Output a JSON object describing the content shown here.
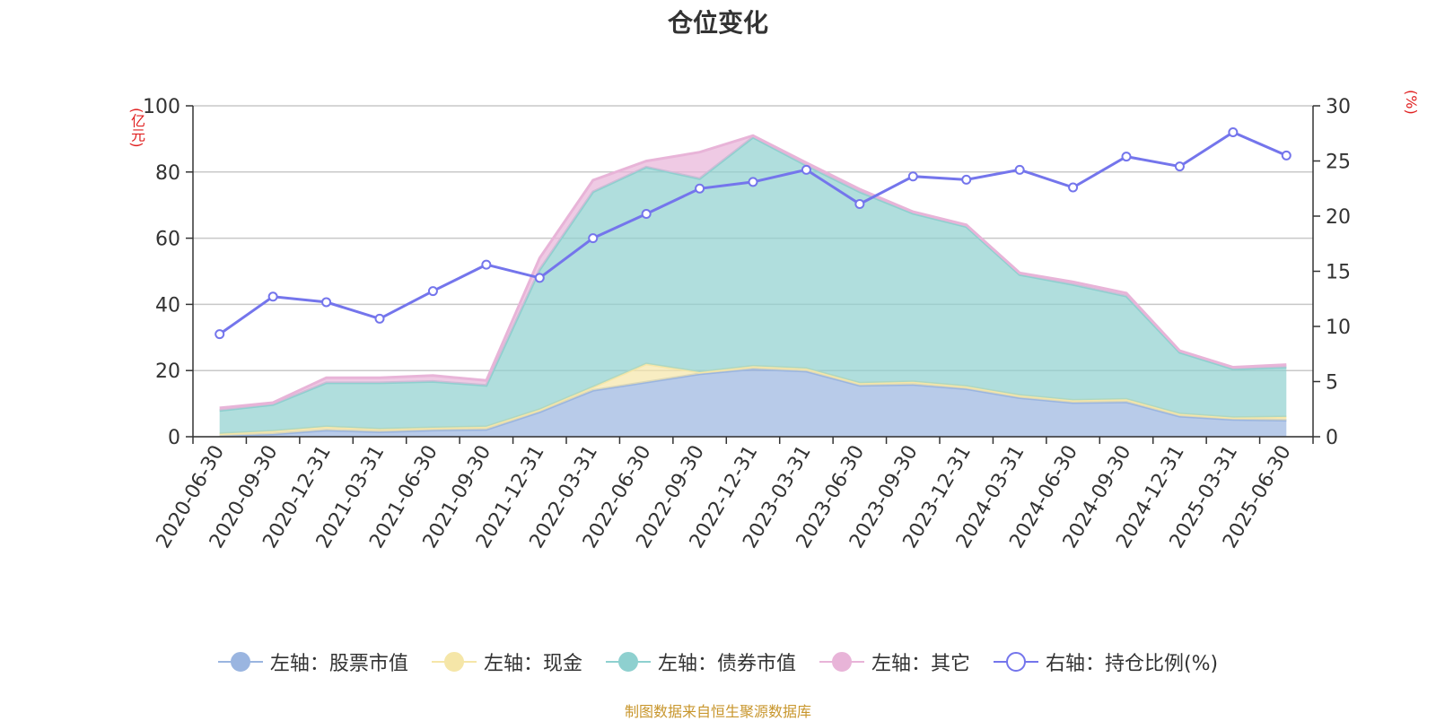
{
  "chart_data": {
    "type": "area",
    "title": "仓位变化",
    "y_left_unit": "(亿元)",
    "y_right_unit": "(%)",
    "categories": [
      "2020-06-30",
      "2020-09-30",
      "2020-12-31",
      "2021-03-31",
      "2021-06-30",
      "2021-09-30",
      "2021-12-31",
      "2022-03-31",
      "2022-06-30",
      "2022-09-30",
      "2022-12-31",
      "2023-03-31",
      "2023-06-30",
      "2023-09-30",
      "2023-12-31",
      "2024-03-31",
      "2024-06-30",
      "2024-09-30",
      "2024-12-31",
      "2025-03-31",
      "2025-06-30"
    ],
    "ylim_left": [
      0,
      100
    ],
    "yticks_left": [
      "0",
      "20",
      "40",
      "60",
      "80",
      "100"
    ],
    "ylim_right": [
      0,
      30
    ],
    "yticks_right": [
      "0",
      "5",
      "10",
      "15",
      "20",
      "25",
      "30"
    ],
    "grid": true,
    "legend_position": "bottom",
    "series": [
      {
        "name": "左轴：股票市值",
        "axis": "left",
        "type": "stacked-area",
        "color": "#9ab5e0",
        "values": [
          0.3,
          0.8,
          2.0,
          1.5,
          2.0,
          2.2,
          7.5,
          14.0,
          16.5,
          19.0,
          20.5,
          19.8,
          15.5,
          15.8,
          14.5,
          11.8,
          10.3,
          10.5,
          6.2,
          5.2,
          5.0
        ]
      },
      {
        "name": "左轴：现金",
        "axis": "left",
        "type": "stacked-area",
        "color": "#f5e6a8",
        "values": [
          0.6,
          0.9,
          1.0,
          0.8,
          0.7,
          0.8,
          0.7,
          1.0,
          5.5,
          0.5,
          0.8,
          0.8,
          0.7,
          0.8,
          0.7,
          0.7,
          0.7,
          0.8,
          0.7,
          0.6,
          1.0
        ]
      },
      {
        "name": "左轴：债券市值",
        "axis": "left",
        "type": "stacked-area",
        "color": "#8ed0cf",
        "values": [
          7.0,
          8.0,
          13.3,
          14.0,
          14.0,
          12.5,
          42.3,
          59.0,
          59.5,
          58.5,
          69.2,
          61.4,
          57.8,
          50.9,
          48.3,
          36.5,
          35.0,
          31.2,
          18.6,
          14.7,
          15.0
        ]
      },
      {
        "name": "左轴：其它",
        "axis": "left",
        "type": "stacked-area",
        "color": "#e8b4d8",
        "values": [
          0.8,
          0.6,
          1.5,
          1.5,
          1.8,
          1.5,
          3.5,
          3.5,
          1.8,
          8.0,
          0.5,
          0.8,
          0.8,
          0.5,
          0.5,
          0.5,
          0.8,
          0.9,
          0.5,
          0.5,
          0.8
        ]
      },
      {
        "name": "右轴：持仓比例(%)",
        "axis": "right",
        "type": "line",
        "color": "#7475ec",
        "values": [
          9.3,
          12.7,
          12.2,
          10.7,
          13.2,
          15.6,
          14.4,
          18.0,
          20.2,
          22.5,
          23.1,
          24.2,
          21.1,
          23.6,
          23.3,
          24.2,
          22.6,
          25.4,
          24.5,
          27.6,
          25.5
        ]
      }
    ]
  },
  "source": "制图数据来自恒生聚源数据库"
}
